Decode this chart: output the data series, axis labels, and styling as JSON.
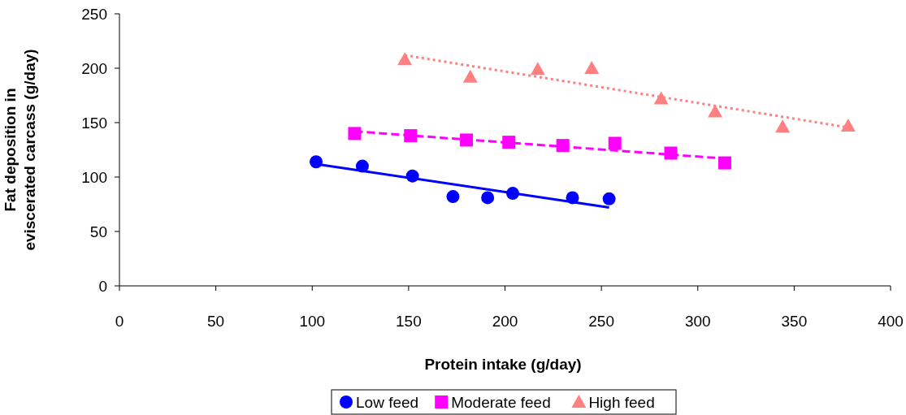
{
  "chart_data": {
    "type": "scatter",
    "xlabel": "Protein intake (g/day)",
    "ylabel": "Fat deposition in eviscerated carcass (g/day)",
    "xlim": [
      0,
      400
    ],
    "xticks": [
      0,
      50,
      100,
      150,
      200,
      250,
      300,
      350,
      400
    ],
    "ylim": [
      0,
      250
    ],
    "yticks": [
      0,
      50,
      100,
      150,
      200,
      250
    ],
    "grid": false,
    "legend": "bottom",
    "series": [
      {
        "name": "Low feed",
        "marker": "circle",
        "color": "#0000ff",
        "x": [
          102,
          126,
          152,
          173,
          191,
          204,
          235,
          254
        ],
        "values": [
          114,
          110,
          101,
          82,
          81,
          85,
          81,
          80
        ]
      },
      {
        "name": "Moderate feed",
        "marker": "square",
        "color": "#ff00ff",
        "x": [
          122,
          151,
          180,
          202,
          230,
          257,
          286,
          314
        ],
        "values": [
          140,
          138,
          134,
          132,
          129,
          131,
          122,
          113
        ]
      },
      {
        "name": "High feed",
        "marker": "triangle",
        "color": "#ff8080",
        "x": [
          148,
          182,
          217,
          245,
          281,
          309,
          344,
          378
        ],
        "values": [
          208,
          192,
          199,
          200,
          172,
          160,
          146,
          147
        ]
      },
      {
        "type": "line",
        "line_style": "solid",
        "color": "#0000ff",
        "x": [
          102,
          254
        ],
        "values": [
          112,
          72
        ]
      },
      {
        "type": "line",
        "line_style": "dashed",
        "color": "#ff00ff",
        "x": [
          122,
          314
        ],
        "values": [
          142,
          117
        ]
      },
      {
        "type": "line",
        "line_style": "dotted",
        "color": "#ff8080",
        "x": [
          148,
          380
        ],
        "values": [
          212,
          145
        ]
      }
    ]
  }
}
